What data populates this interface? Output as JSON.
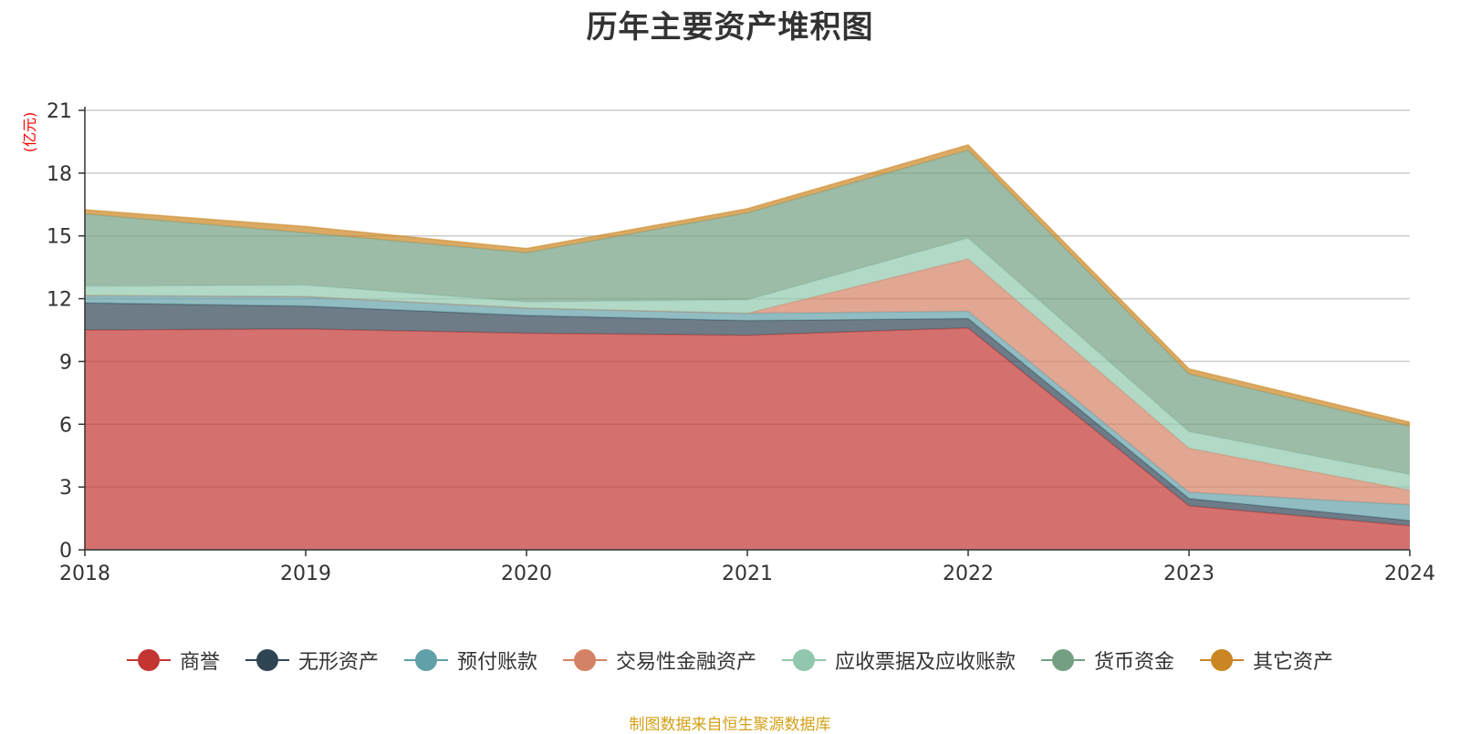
{
  "chart_data": {
    "type": "area",
    "title": "历年主要资产堆积图",
    "unit_label": "(亿元)",
    "x": [
      "2018",
      "2019",
      "2020",
      "2021",
      "2022",
      "2023",
      "2024"
    ],
    "ylim": [
      0,
      21
    ],
    "yticks": [
      0,
      3,
      6,
      9,
      12,
      15,
      18,
      21
    ],
    "grid": true,
    "stacked": true,
    "legend_position": "bottom",
    "series": [
      {
        "name": "商誉",
        "color": "#c23531",
        "values": [
          10.5,
          10.55,
          10.35,
          10.25,
          10.6,
          2.1,
          1.15
        ]
      },
      {
        "name": "无形资产",
        "color": "#2f4554",
        "values": [
          1.3,
          1.1,
          0.85,
          0.7,
          0.45,
          0.35,
          0.25
        ]
      },
      {
        "name": "预付账款",
        "color": "#61a0a8",
        "values": [
          0.35,
          0.45,
          0.35,
          0.35,
          0.35,
          0.3,
          0.75
        ]
      },
      {
        "name": "交易性金融资产",
        "color": "#d48265",
        "values": [
          0,
          0,
          0,
          0,
          2.5,
          2.1,
          0.7
        ]
      },
      {
        "name": "应收票据及应收账款",
        "color": "#91c7ae",
        "values": [
          0.45,
          0.55,
          0.3,
          0.65,
          1.0,
          0.8,
          0.75
        ]
      },
      {
        "name": "货币资金",
        "color": "#749f83",
        "values": [
          3.45,
          2.5,
          2.35,
          4.15,
          4.2,
          2.75,
          2.3
        ]
      },
      {
        "name": "其它资产",
        "color": "#ca8622",
        "values": [
          0.2,
          0.3,
          0.2,
          0.2,
          0.25,
          0.25,
          0.2
        ]
      }
    ]
  },
  "footer": {
    "source": "制图数据来自恒生聚源数据库"
  }
}
